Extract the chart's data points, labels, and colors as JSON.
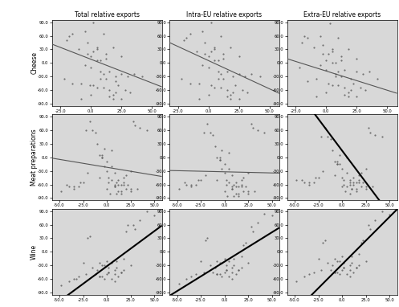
{
  "col_titles": [
    "Total relative exports",
    "Intra-EU relative exports",
    "Extra-EU relative exports"
  ],
  "row_titles": [
    "Cheese",
    "Meat preparations",
    "Wine"
  ],
  "background_color": "#d8d8d8",
  "scatter_color": "#606060",
  "line_color_thin": "#555555",
  "line_color_bold": "#000000",
  "panels": {
    "cheese_total": {
      "xlim": [
        -32,
        58
      ],
      "ylim": [
        -95,
        95
      ],
      "xticks": [
        -25,
        0,
        25,
        50
      ],
      "yticks": [
        -90,
        -60,
        -30,
        0,
        30,
        60,
        90
      ],
      "slope": -1.05,
      "intercept": 8,
      "bold": false,
      "points_x": [
        -22,
        -18,
        -15,
        -10,
        -8,
        -5,
        -3,
        0,
        0,
        2,
        5,
        5,
        8,
        8,
        10,
        10,
        12,
        12,
        15,
        15,
        18,
        18,
        20,
        22,
        25,
        25,
        28,
        30,
        35,
        42,
        -20,
        -5,
        5,
        12,
        20,
        0,
        -3,
        8,
        15,
        -8,
        2,
        18,
        25,
        32,
        -15,
        5,
        10,
        2,
        -1,
        20
      ],
      "points_y": [
        -35,
        60,
        65,
        30,
        -45,
        70,
        20,
        15,
        -10,
        25,
        30,
        5,
        5,
        -20,
        -25,
        -55,
        -35,
        10,
        -60,
        -75,
        -70,
        -80,
        -65,
        -50,
        -25,
        -80,
        -60,
        -30,
        -25,
        -30,
        50,
        -5,
        35,
        20,
        -30,
        -70,
        45,
        -35,
        -20,
        -80,
        -50,
        35,
        15,
        -65,
        -45,
        -55,
        65,
        90,
        -50,
        -40
      ]
    },
    "cheese_intra": {
      "xlim": [
        -32,
        58
      ],
      "ylim": [
        -95,
        95
      ],
      "xticks": [
        -25,
        0,
        25,
        50
      ],
      "yticks": [
        -90,
        -60,
        -30,
        0,
        30,
        60,
        90
      ],
      "slope": -1.25,
      "intercept": 5,
      "bold": false,
      "points_x": [
        -22,
        -18,
        -15,
        -10,
        -8,
        -5,
        -3,
        0,
        0,
        2,
        5,
        5,
        8,
        8,
        10,
        10,
        12,
        12,
        15,
        15,
        18,
        18,
        20,
        22,
        25,
        25,
        28,
        30,
        35,
        42,
        -20,
        -5,
        5,
        12,
        20,
        0,
        -3,
        8,
        15,
        -8,
        2,
        18,
        25,
        32,
        -15,
        5,
        10,
        2
      ],
      "points_y": [
        -35,
        55,
        65,
        25,
        -45,
        70,
        20,
        15,
        -10,
        25,
        30,
        5,
        5,
        -20,
        -25,
        -55,
        -35,
        10,
        -60,
        -75,
        -70,
        -80,
        -65,
        -50,
        -25,
        -80,
        -60,
        -30,
        -25,
        -30,
        50,
        -5,
        35,
        20,
        -30,
        -70,
        45,
        -35,
        -20,
        -80,
        -50,
        35,
        15,
        -65,
        -45,
        -55,
        60,
        90
      ]
    },
    "cheese_extra": {
      "xlim": [
        -32,
        58
      ],
      "ylim": [
        -95,
        95
      ],
      "xticks": [
        -25,
        0,
        25,
        50
      ],
      "yticks": [
        -90,
        -60,
        -30,
        0,
        30,
        60,
        90
      ],
      "slope": -0.85,
      "intercept": -18,
      "bold": false,
      "points_x": [
        -22,
        -18,
        -15,
        -10,
        -8,
        -5,
        -3,
        0,
        0,
        2,
        5,
        5,
        8,
        8,
        10,
        10,
        12,
        12,
        15,
        15,
        18,
        18,
        20,
        22,
        25,
        25,
        28,
        30,
        35,
        42,
        -20,
        -5,
        5,
        12,
        20,
        0,
        -3,
        8,
        15,
        -8,
        2,
        18,
        25,
        32,
        -15,
        5,
        10,
        3
      ],
      "points_y": [
        -10,
        60,
        55,
        35,
        -35,
        60,
        20,
        5,
        -15,
        20,
        25,
        0,
        0,
        -25,
        -20,
        -50,
        -30,
        5,
        -55,
        -70,
        -65,
        -75,
        -60,
        -45,
        -20,
        -75,
        -55,
        -25,
        -20,
        -35,
        45,
        -5,
        30,
        15,
        -35,
        -65,
        40,
        -30,
        -15,
        -75,
        -45,
        30,
        10,
        -60,
        -40,
        -50,
        55,
        88
      ]
    },
    "meat_total": {
      "xlim": [
        -58,
        58
      ],
      "ylim": [
        -95,
        95
      ],
      "xticks": [
        -50,
        -25,
        0,
        25,
        50
      ],
      "yticks": [
        -90,
        -60,
        -30,
        0,
        30,
        60,
        90
      ],
      "slope": -0.35,
      "intercept": -22,
      "bold": false,
      "points_x": [
        -48,
        -40,
        -35,
        -30,
        -25,
        -22,
        -18,
        -15,
        -12,
        -10,
        -8,
        -5,
        -3,
        0,
        0,
        2,
        5,
        5,
        8,
        8,
        10,
        10,
        12,
        12,
        15,
        15,
        18,
        18,
        20,
        22,
        25,
        25,
        28,
        30,
        35,
        42,
        -20,
        -5,
        5,
        12,
        20,
        0,
        -3,
        8,
        15,
        -8,
        2,
        18,
        25,
        32,
        -28,
        -35,
        -42,
        3,
        -5,
        8
      ],
      "points_y": [
        -75,
        -65,
        -70,
        -65,
        -55,
        60,
        80,
        60,
        55,
        30,
        5,
        0,
        20,
        -10,
        -30,
        -45,
        -20,
        -50,
        -35,
        -65,
        -55,
        -80,
        -75,
        -60,
        -60,
        -80,
        -55,
        -45,
        -70,
        -60,
        -30,
        -70,
        80,
        70,
        65,
        60,
        -35,
        5,
        15,
        -50,
        -40,
        -70,
        -20,
        -65,
        -75,
        -45,
        -55,
        -60,
        -75,
        -70,
        -55,
        -65,
        -60,
        -80,
        0,
        -60
      ]
    },
    "meat_intra": {
      "xlim": [
        -58,
        58
      ],
      "ylim": [
        -95,
        95
      ],
      "xticks": [
        -50,
        -25,
        0,
        25,
        50
      ],
      "yticks": [
        -90,
        -60,
        -30,
        0,
        30,
        60,
        90
      ],
      "slope": -0.05,
      "intercept": -32,
      "bold": false,
      "points_x": [
        -48,
        -40,
        -35,
        -30,
        -25,
        -22,
        -18,
        -15,
        -12,
        -10,
        -8,
        -5,
        -3,
        0,
        0,
        2,
        5,
        5,
        8,
        8,
        10,
        10,
        12,
        12,
        15,
        15,
        18,
        18,
        20,
        22,
        25,
        25,
        28,
        30,
        35,
        42,
        -20,
        -5,
        5,
        12,
        20,
        0,
        -3,
        8,
        15,
        -8,
        2,
        18,
        25,
        32,
        -28,
        -35,
        -42,
        3,
        -5,
        8
      ],
      "points_y": [
        -70,
        -60,
        -65,
        -60,
        -50,
        55,
        75,
        55,
        50,
        25,
        0,
        -5,
        15,
        -15,
        -35,
        -50,
        -25,
        -55,
        -40,
        -70,
        -60,
        -85,
        -80,
        -65,
        -65,
        -85,
        -60,
        -50,
        -75,
        -65,
        -35,
        -75,
        75,
        65,
        60,
        55,
        -40,
        0,
        10,
        -55,
        -45,
        -75,
        -25,
        -70,
        -80,
        -50,
        -60,
        -65,
        -80,
        -75,
        -50,
        -60,
        -55,
        -85,
        -5,
        -65
      ]
    },
    "meat_extra": {
      "xlim": [
        -58,
        58
      ],
      "ylim": [
        -95,
        95
      ],
      "xticks": [
        -50,
        -25,
        0,
        25,
        50
      ],
      "yticks": [
        -90,
        -60,
        -30,
        0,
        30,
        60,
        90
      ],
      "slope": -2.8,
      "intercept": 15,
      "bold": true,
      "points_x": [
        -48,
        -40,
        -35,
        -30,
        -25,
        -22,
        -18,
        -15,
        -12,
        -10,
        -8,
        -5,
        -3,
        0,
        0,
        2,
        5,
        5,
        8,
        8,
        10,
        10,
        12,
        12,
        15,
        15,
        18,
        18,
        20,
        22,
        25,
        25,
        28,
        30,
        35,
        42,
        -20,
        -5,
        5,
        12,
        20,
        0,
        -3,
        8,
        15,
        -8,
        2,
        18,
        25,
        32,
        -28,
        -35,
        -42,
        3,
        -5,
        8
      ],
      "points_y": [
        -50,
        -55,
        -60,
        -55,
        -45,
        45,
        65,
        45,
        40,
        15,
        -10,
        -15,
        5,
        -25,
        -45,
        -60,
        -35,
        -65,
        -50,
        -80,
        -70,
        -70,
        -60,
        -55,
        -55,
        -75,
        -50,
        -40,
        -65,
        -55,
        -25,
        -65,
        65,
        55,
        50,
        45,
        -30,
        -10,
        0,
        -45,
        -35,
        -65,
        -15,
        -60,
        -70,
        -40,
        -50,
        -55,
        -70,
        -65,
        -45,
        -55,
        -50,
        -75,
        -15,
        -55
      ]
    },
    "wine_total": {
      "xlim": [
        -58,
        58
      ],
      "ylim": [
        -95,
        95
      ],
      "xticks": [
        -50,
        -25,
        0,
        25,
        50
      ],
      "yticks": [
        -90,
        -60,
        -30,
        0,
        30,
        60,
        90
      ],
      "slope": 1.55,
      "intercept": -32,
      "bold": true,
      "points_x": [
        -48,
        -40,
        -35,
        -30,
        -25,
        -22,
        -18,
        -15,
        -12,
        -10,
        -8,
        -8,
        -5,
        -5,
        -3,
        0,
        0,
        2,
        2,
        5,
        5,
        8,
        8,
        10,
        10,
        12,
        15,
        18,
        20,
        22,
        25,
        28,
        30,
        35,
        42,
        -20,
        -3,
        8,
        15,
        -8,
        2,
        18,
        -32,
        50
      ],
      "points_y": [
        -75,
        -65,
        -60,
        -55,
        -25,
        -50,
        35,
        -35,
        -50,
        -40,
        -25,
        -55,
        -30,
        -55,
        -30,
        -50,
        -20,
        -35,
        -45,
        -60,
        -25,
        -50,
        -40,
        -20,
        -35,
        -55,
        -45,
        -15,
        45,
        60,
        -30,
        60,
        50,
        70,
        90,
        30,
        -60,
        -65,
        -45,
        -55,
        -45,
        -40,
        -60,
        80
      ]
    },
    "wine_intra": {
      "xlim": [
        -58,
        58
      ],
      "ylim": [
        -95,
        95
      ],
      "xticks": [
        -50,
        -25,
        0,
        25,
        50
      ],
      "yticks": [
        -90,
        -60,
        -30,
        0,
        30,
        60,
        90
      ],
      "slope": 1.3,
      "intercept": -22,
      "bold": true,
      "points_x": [
        -48,
        -40,
        -35,
        -30,
        -25,
        -22,
        -18,
        -15,
        -12,
        -10,
        -8,
        -8,
        -5,
        -5,
        -3,
        0,
        0,
        2,
        2,
        5,
        5,
        8,
        8,
        10,
        10,
        12,
        15,
        18,
        20,
        22,
        25,
        28,
        30,
        35,
        42,
        -20,
        -3,
        8,
        15,
        -8,
        2,
        18,
        50
      ],
      "points_y": [
        -70,
        -60,
        -55,
        -50,
        -20,
        -45,
        30,
        -30,
        -45,
        -35,
        -20,
        -50,
        -25,
        -50,
        -25,
        -45,
        -15,
        -30,
        -40,
        -55,
        -20,
        -45,
        -35,
        -15,
        -30,
        -50,
        -40,
        -10,
        15,
        20,
        -25,
        55,
        45,
        65,
        85,
        25,
        -55,
        -60,
        -40,
        -50,
        -40,
        -35,
        80
      ]
    },
    "wine_extra": {
      "xlim": [
        -58,
        58
      ],
      "ylim": [
        -95,
        95
      ],
      "xticks": [
        -50,
        -25,
        0,
        25,
        50
      ],
      "yticks": [
        -90,
        -60,
        -30,
        0,
        30,
        60,
        90
      ],
      "slope": 2.1,
      "intercept": -28,
      "bold": true,
      "points_x": [
        -48,
        -40,
        -35,
        -30,
        -25,
        -22,
        -18,
        -15,
        -12,
        -10,
        -8,
        -8,
        -5,
        -5,
        -3,
        0,
        0,
        2,
        2,
        5,
        5,
        8,
        8,
        10,
        10,
        12,
        15,
        18,
        20,
        22,
        25,
        28,
        30,
        35,
        42,
        -20,
        -3,
        8,
        15,
        -8,
        2,
        18,
        50
      ],
      "points_y": [
        -65,
        -55,
        -50,
        -45,
        -15,
        -40,
        25,
        -25,
        -40,
        -30,
        -15,
        -45,
        -20,
        -45,
        -20,
        -40,
        -10,
        -25,
        -35,
        -50,
        -15,
        -40,
        -30,
        -10,
        -25,
        -45,
        -35,
        -5,
        20,
        25,
        -20,
        60,
        50,
        70,
        90,
        20,
        -50,
        -55,
        -35,
        -45,
        -35,
        -30,
        82
      ]
    }
  }
}
